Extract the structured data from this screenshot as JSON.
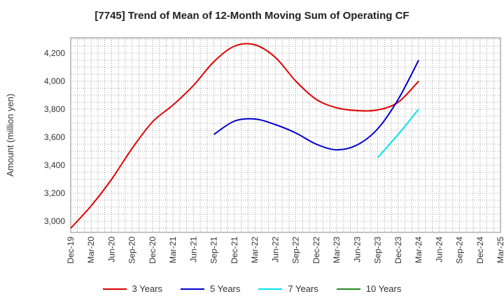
{
  "chart_data": {
    "type": "line",
    "title": "[7745]  Trend of Mean of 12-Month Moving Sum of Operating CF",
    "xlabel": "",
    "ylabel": "Amount (million yen)",
    "ylim": [
      2920,
      4310
    ],
    "yticks": [
      3000,
      3200,
      3400,
      3600,
      3800,
      4000,
      4200
    ],
    "ytick_labels": [
      "3,000",
      "3,200",
      "3,400",
      "3,600",
      "3,800",
      "4,000",
      "4,200"
    ],
    "x_categories": [
      "Dec-19",
      "Mar-20",
      "Jun-20",
      "Sep-20",
      "Dec-20",
      "Mar-21",
      "Jun-21",
      "Sep-21",
      "Dec-21",
      "Mar-22",
      "Jun-22",
      "Sep-22",
      "Dec-22",
      "Mar-23",
      "Jun-23",
      "Sep-23",
      "Dec-23",
      "Mar-24",
      "Jun-24",
      "Sep-24",
      "Dec-24",
      "Mar-25"
    ],
    "grid": true,
    "legend_position": "bottom",
    "series": [
      {
        "name": "3 Years",
        "color": "#dd0000",
        "start_index": 0,
        "values": [
          2950,
          3110,
          3300,
          3520,
          3710,
          3830,
          3970,
          4140,
          4250,
          4260,
          4170,
          4000,
          3870,
          3810,
          3790,
          3795,
          3850,
          4000
        ]
      },
      {
        "name": "5 Years",
        "color": "#0000cc",
        "start_index": 7,
        "values": [
          3620,
          3715,
          3730,
          3690,
          3630,
          3550,
          3510,
          3545,
          3660,
          3870,
          4150
        ]
      },
      {
        "name": "7 Years",
        "color": "#00e5ee",
        "start_index": 15,
        "values": [
          3455,
          3620,
          3800
        ]
      },
      {
        "name": "10 Years",
        "color": "#228822",
        "start_index": 0,
        "values": []
      }
    ]
  }
}
